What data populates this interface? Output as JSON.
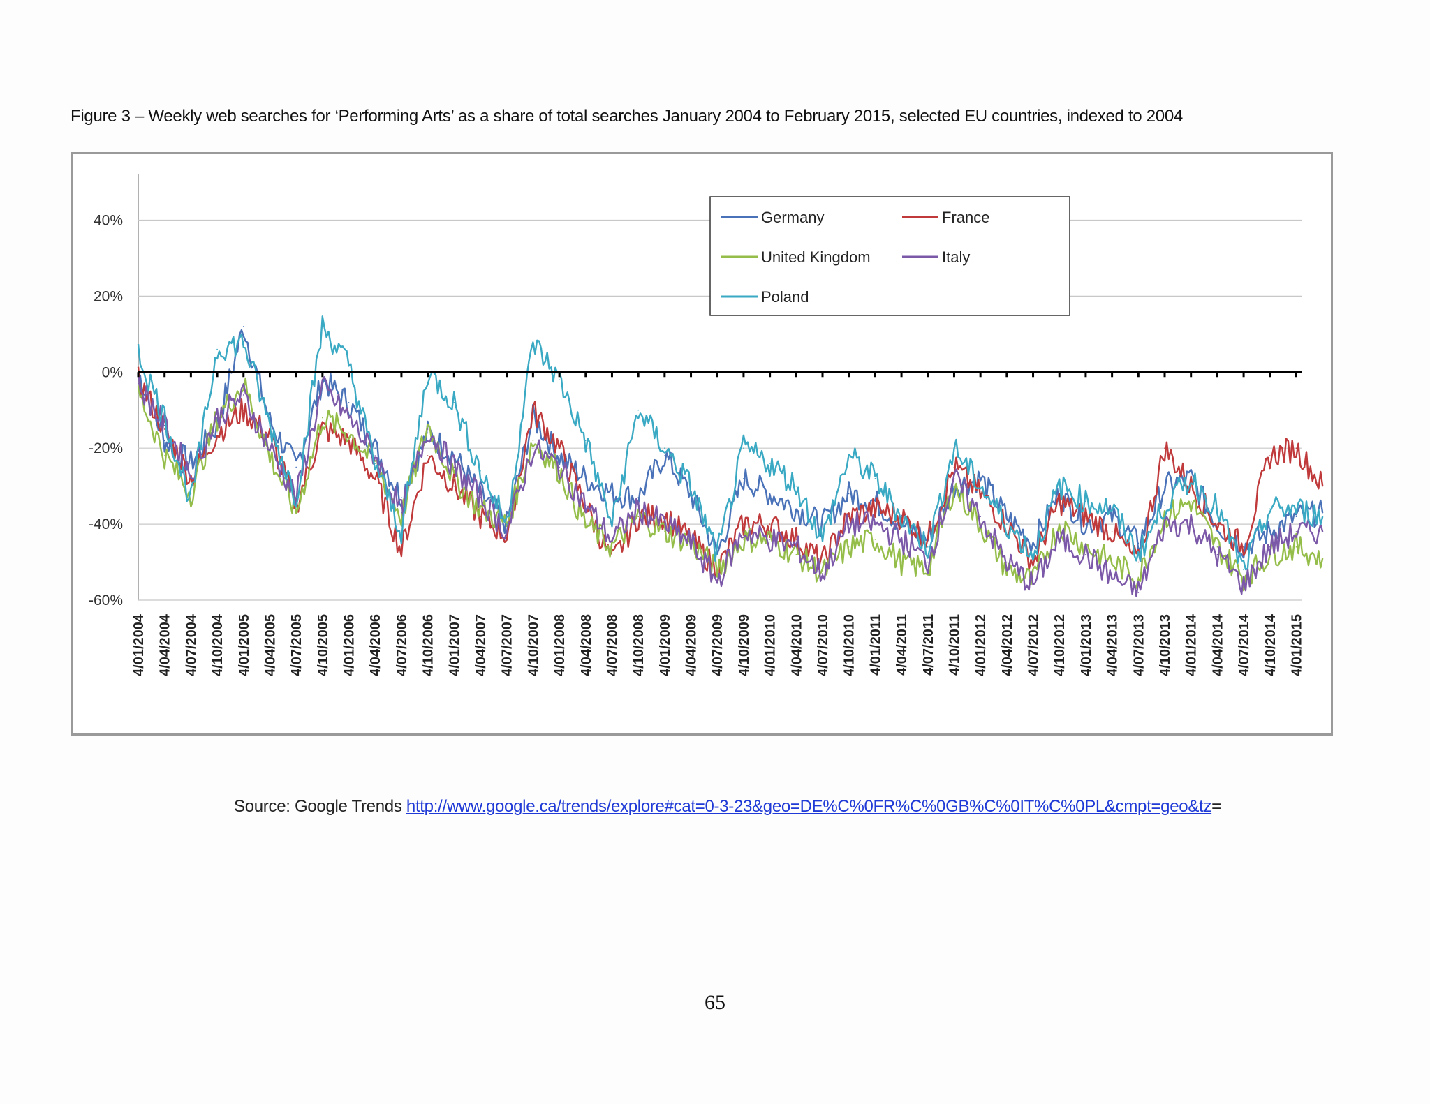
{
  "caption": "Figure 3 – Weekly web searches for ‘Performing Arts’ as a share of total searches January 2004 to February 2015, selected EU countries, indexed to 2004",
  "source": {
    "prefix": "Source: Google Trends ",
    "link_text": "http://www.google.ca/trends/explore#cat=0-3-23&geo=DE%C%0FR%C%0GB%C%0IT%C%0PL&cmpt=geo&tz",
    "suffix": "="
  },
  "page_number": "65",
  "colors": {
    "Germany": "#4a72b8",
    "France": "#c0393b",
    "United Kingdom": "#95bd4a",
    "Italy": "#7b58a8",
    "Poland": "#3aa9c3",
    "zero_line": "#000000",
    "grid": "#c8c8c8"
  },
  "chart_data": {
    "type": "line",
    "title": "",
    "xlabel": "",
    "ylabel": "",
    "ylim": [
      -60,
      50
    ],
    "yticks": [
      -60,
      -40,
      -20,
      0,
      20,
      40
    ],
    "ytick_labels": [
      "-60%",
      "-40%",
      "-20%",
      "0%",
      "20%",
      "40%"
    ],
    "grid": true,
    "legend_position": "top-right",
    "legend_order": [
      "Germany",
      "France",
      "United Kingdom",
      "Italy",
      "Poland"
    ],
    "x_ticks": [
      "4/01/2004",
      "4/04/2004",
      "4/07/2004",
      "4/10/2004",
      "4/01/2005",
      "4/04/2005",
      "4/07/2005",
      "4/10/2005",
      "4/01/2006",
      "4/04/2006",
      "4/07/2006",
      "4/10/2006",
      "4/01/2007",
      "4/04/2007",
      "4/07/2007",
      "4/10/2007",
      "4/01/2008",
      "4/04/2008",
      "4/07/2008",
      "4/10/2008",
      "4/01/2009",
      "4/04/2009",
      "4/07/2009",
      "4/10/2009",
      "4/01/2010",
      "4/04/2010",
      "4/07/2010",
      "4/10/2010",
      "4/01/2011",
      "4/04/2011",
      "4/07/2011",
      "4/10/2011",
      "4/01/2012",
      "4/04/2012",
      "4/07/2012",
      "4/10/2012",
      "4/01/2013",
      "4/04/2013",
      "4/07/2013",
      "4/10/2013",
      "4/01/2014",
      "4/04/2014",
      "4/07/2014",
      "4/10/2014",
      "4/01/2015"
    ],
    "x": [
      "4/01/2004",
      "4/04/2004",
      "4/07/2004",
      "4/10/2004",
      "4/01/2005",
      "4/04/2005",
      "4/07/2005",
      "4/10/2005",
      "4/01/2006",
      "4/04/2006",
      "4/07/2006",
      "4/10/2006",
      "4/01/2007",
      "4/04/2007",
      "4/07/2007",
      "4/10/2007",
      "4/01/2008",
      "4/04/2008",
      "4/07/2008",
      "4/10/2008",
      "4/01/2009",
      "4/04/2009",
      "4/07/2009",
      "4/10/2009",
      "4/01/2010",
      "4/04/2010",
      "4/07/2010",
      "4/10/2010",
      "4/01/2011",
      "4/04/2011",
      "4/07/2011",
      "4/10/2011",
      "4/01/2012",
      "4/04/2012",
      "4/07/2012",
      "4/10/2012",
      "4/01/2013",
      "4/04/2013",
      "4/07/2013",
      "4/10/2013",
      "4/01/2014",
      "4/04/2014",
      "4/07/2014",
      "4/10/2014",
      "4/01/2015",
      "4/02/2015"
    ],
    "series": [
      {
        "name": "Germany",
        "values": [
          0,
          -18,
          -24,
          -14,
          12,
          -13,
          -25,
          -2,
          -8,
          -20,
          -33,
          -16,
          -22,
          -32,
          -40,
          -12,
          -22,
          -28,
          -32,
          -33,
          -22,
          -32,
          -48,
          -28,
          -32,
          -36,
          -40,
          -32,
          -34,
          -40,
          -44,
          -30,
          -28,
          -38,
          -45,
          -32,
          -40,
          -38,
          -45,
          -30,
          -28,
          -40,
          -46,
          -42,
          -38,
          -37
        ]
      },
      {
        "name": "France",
        "values": [
          -2,
          -15,
          -28,
          -16,
          -10,
          -17,
          -35,
          -15,
          -18,
          -28,
          -47,
          -22,
          -30,
          -38,
          -43,
          -10,
          -20,
          -35,
          -50,
          -38,
          -38,
          -44,
          -52,
          -40,
          -40,
          -44,
          -50,
          -38,
          -36,
          -38,
          -44,
          -25,
          -32,
          -40,
          -50,
          -34,
          -38,
          -42,
          -50,
          -20,
          -30,
          -40,
          -46,
          -22,
          -20,
          -30
        ]
      },
      {
        "name": "United Kingdom",
        "values": [
          -5,
          -22,
          -32,
          -12,
          -3,
          -22,
          -37,
          -12,
          -16,
          -24,
          -38,
          -14,
          -28,
          -36,
          -40,
          -18,
          -26,
          -40,
          -46,
          -38,
          -42,
          -45,
          -52,
          -44,
          -44,
          -48,
          -53,
          -46,
          -44,
          -50,
          -52,
          -30,
          -40,
          -52,
          -55,
          -40,
          -46,
          -50,
          -54,
          -38,
          -34,
          -46,
          -54,
          -48,
          -46,
          -49
        ]
      },
      {
        "name": "Italy",
        "values": [
          -3,
          -14,
          -27,
          -12,
          -6,
          -20,
          -33,
          -4,
          -12,
          -22,
          -37,
          -15,
          -25,
          -33,
          -42,
          -20,
          -25,
          -35,
          -44,
          -36,
          -40,
          -45,
          -55,
          -42,
          -44,
          -46,
          -53,
          -40,
          -40,
          -44,
          -50,
          -28,
          -38,
          -50,
          -56,
          -44,
          -48,
          -54,
          -58,
          -40,
          -40,
          -48,
          -56,
          -46,
          -42,
          -42
        ]
      },
      {
        "name": "Poland",
        "values": [
          5,
          -12,
          -34,
          6,
          8,
          -14,
          -33,
          12,
          2,
          -24,
          -42,
          0,
          -8,
          -26,
          -40,
          8,
          -2,
          -18,
          -40,
          -10,
          -20,
          -30,
          -48,
          -20,
          -24,
          -30,
          -44,
          -22,
          -28,
          -38,
          -46,
          -20,
          -30,
          -40,
          -48,
          -30,
          -34,
          -36,
          -48,
          -35,
          -28,
          -36,
          -52,
          -36,
          -36,
          -38
        ]
      }
    ]
  }
}
